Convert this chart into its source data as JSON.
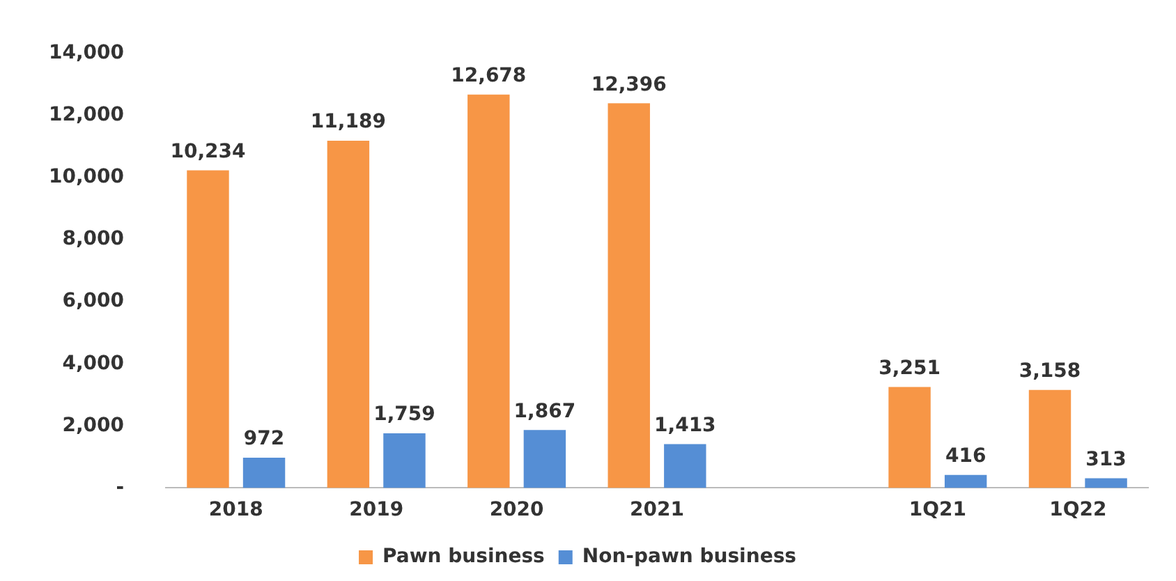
{
  "chart_data": {
    "type": "bar",
    "categories": [
      "2018",
      "2019",
      "2020",
      "2021",
      null,
      "1Q21",
      "1Q22"
    ],
    "series": [
      {
        "name": "Pawn business",
        "color": "#f79646",
        "values": [
          10234,
          11189,
          12678,
          12396,
          null,
          3251,
          3158
        ],
        "value_labels": [
          "10,234",
          "11,189",
          "12,678",
          "12,396",
          null,
          "3,251",
          "3,158"
        ]
      },
      {
        "name": "Non-pawn business",
        "color": "#558ed5",
        "values": [
          972,
          1759,
          1867,
          1413,
          null,
          416,
          313
        ],
        "value_labels": [
          "972",
          "1,759",
          "1,867",
          "1,413",
          null,
          "416",
          "313"
        ]
      }
    ],
    "ylim": [
      0,
      14000
    ],
    "yticks": [
      {
        "value": 0,
        "label": "-"
      },
      {
        "value": 2000,
        "label": "2,000"
      },
      {
        "value": 4000,
        "label": "4,000"
      },
      {
        "value": 6000,
        "label": "6,000"
      },
      {
        "value": 8000,
        "label": "8,000"
      },
      {
        "value": 10000,
        "label": "10,000"
      },
      {
        "value": 12000,
        "label": "12,000"
      },
      {
        "value": 14000,
        "label": "14,000"
      }
    ],
    "grid": false,
    "legend": "bottom"
  }
}
